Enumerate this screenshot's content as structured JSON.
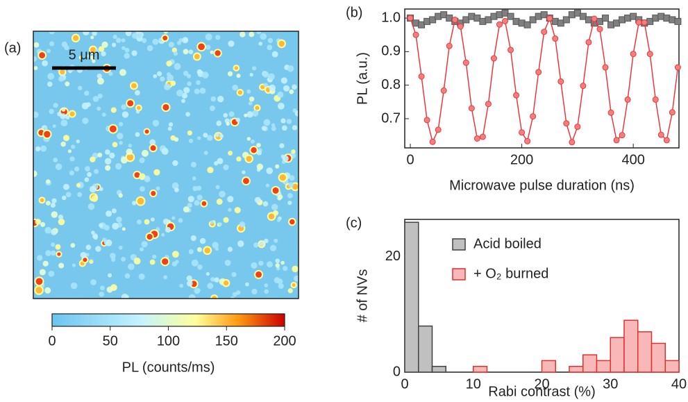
{
  "chart_data": [
    {
      "type": "heatmap",
      "panel_label": "(a)",
      "scale_bar_label": "5 μm",
      "colorbar": {
        "xlabel": "PL (counts/ms)",
        "xlim": [
          0,
          200
        ],
        "xticks": [
          0,
          50,
          100,
          150,
          200
        ]
      }
    },
    {
      "type": "scatter",
      "panel_label": "(b)",
      "xlabel": "Microwave pulse duration (ns)",
      "ylabel": "PL (a.u.)",
      "xlim": [
        -10,
        482
      ],
      "ylim": [
        0.613,
        1.027
      ],
      "xticks": [
        0,
        200,
        400
      ],
      "yticks": [
        0.7,
        0.8,
        0.9,
        {
          "value": 1,
          "label": "1.0"
        }
      ],
      "x": [
        0,
        10,
        20,
        30,
        40,
        50,
        60,
        70,
        80,
        90,
        100,
        110,
        120,
        130,
        140,
        150,
        160,
        170,
        180,
        190,
        200,
        210,
        220,
        230,
        240,
        250,
        260,
        270,
        280,
        290,
        300,
        310,
        320,
        330,
        340,
        350,
        360,
        370,
        380,
        390,
        400,
        410,
        420,
        430,
        440,
        450,
        460,
        470,
        480
      ],
      "series": [
        {
          "color": "#808080",
          "marker": "square",
          "values": [
            1.0,
            0.985,
            0.98,
            0.99,
            0.995,
            1.005,
            1.01,
            1.0,
            0.99,
            0.985,
            0.995,
            1.005,
            1.0,
            0.99,
            0.995,
            1.005,
            1.01,
            1.015,
            1.005,
            0.99,
            0.985,
            0.98,
            0.995,
            1.005,
            1.01,
            1.0,
            0.99,
            0.985,
            0.995,
            1.01,
            1.015,
            1.005,
            0.995,
            0.985,
            0.99,
            1.0,
            0.98,
            0.985,
            0.995,
            1.0,
            1.005,
            0.995,
            0.985,
            0.99,
            1.0,
            1.005,
            1.0,
            0.995,
            0.99
          ]
        },
        {
          "color": "#e8383d",
          "marker": "circle",
          "line": true,
          "values": [
            1.0,
            0.95,
            0.826,
            0.696,
            0.631,
            0.667,
            0.784,
            0.917,
            0.995,
            0.975,
            0.867,
            0.731,
            0.641,
            0.646,
            0.744,
            0.88,
            0.981,
            0.991,
            0.905,
            0.77,
            0.659,
            0.633,
            0.707,
            0.839,
            0.959,
            0.999,
            0.939,
            0.811,
            0.686,
            0.63,
            0.676,
            0.798,
            0.928,
            0.998,
            0.967,
            0.853,
            0.718,
            0.636,
            0.651,
            0.757,
            0.893,
            0.987,
            0.987,
            0.893,
            0.757,
            0.652,
            0.636,
            0.719,
            0.853
          ]
        }
      ]
    },
    {
      "type": "histogram",
      "panel_label": "(c)",
      "xlabel": "Rabi contrast (%)",
      "ylabel": "# of NVs",
      "bins": [
        0,
        2,
        4,
        6,
        8,
        10,
        12,
        14,
        16,
        18,
        20,
        22,
        24,
        26,
        28,
        30,
        32,
        34,
        36,
        38,
        40
      ],
      "xlim": [
        0,
        40
      ],
      "ylim": [
        0,
        26.5
      ],
      "xticks": [
        0,
        10,
        20,
        30,
        40
      ],
      "yticks": [
        0,
        20
      ],
      "legend": "upper center",
      "series": [
        {
          "name": "Acid boiled",
          "color": "#c0c0c0",
          "edgecolor": "#404040",
          "values": [
            26,
            8,
            1,
            0,
            0,
            0,
            0,
            0,
            0,
            0,
            0,
            0,
            0,
            0,
            0,
            0,
            0,
            0,
            0,
            0
          ]
        },
        {
          "name": "+ O₂ burned",
          "color": "#f8b8b8",
          "edgecolor": "#e03030",
          "values": [
            0,
            0,
            0,
            0,
            0,
            1,
            0,
            0,
            0,
            0,
            2,
            0,
            1,
            3,
            2,
            6,
            9,
            7,
            5,
            2
          ]
        }
      ]
    }
  ]
}
